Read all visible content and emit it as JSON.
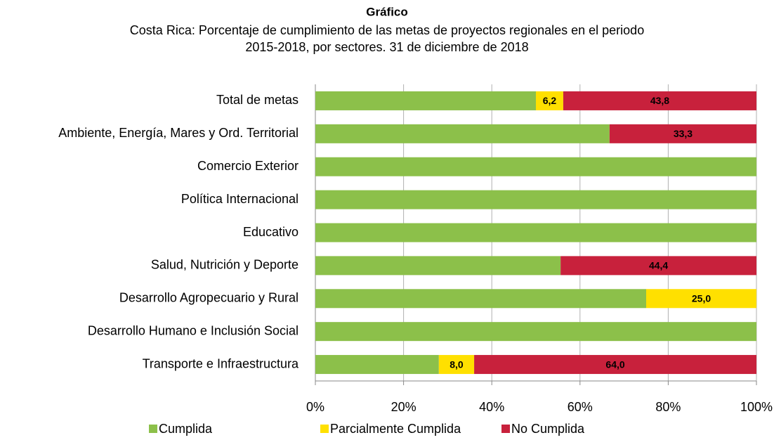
{
  "chart_data": {
    "type": "stacked-bar-horizontal",
    "title": "Gráfico",
    "subtitle": [
      "Costa Rica: Porcentaje de cumplimiento de las metas de proyectos regionales en el periodo",
      "2015-2018, por sectores. 31 de diciembre de 2018"
    ],
    "categories": [
      "Total de metas",
      "Ambiente, Energía, Mares y Ord. Territorial",
      "Comercio Exterior",
      "Política Internacional",
      "Educativo",
      "Salud, Nutrición y Deporte",
      "Desarrollo Agropecuario y Rural",
      "Desarrollo Humano e Inclusión Social",
      "Transporte e Infraestructura"
    ],
    "series": [
      {
        "name": "Cumplida",
        "color": "#8cc04a",
        "values": [
          50.0,
          66.7,
          100,
          100,
          100,
          55.6,
          75.0,
          100,
          28.0
        ]
      },
      {
        "name": "Parcialmente Cumplida",
        "color": "#ffe000",
        "values": [
          6.2,
          0,
          0,
          0,
          0,
          0,
          25.0,
          0,
          8.0
        ],
        "value_labels": [
          "6,2",
          null,
          null,
          null,
          null,
          null,
          "25,0",
          null,
          "8,0"
        ]
      },
      {
        "name": "No Cumplida",
        "color": "#c8213c",
        "values": [
          43.8,
          33.3,
          0,
          0,
          0,
          44.4,
          0,
          0,
          64.0
        ],
        "value_labels": [
          "43,8",
          "33,3",
          null,
          null,
          null,
          "44,4",
          null,
          null,
          "64,0"
        ]
      }
    ],
    "xlim": [
      0,
      100
    ],
    "xticks": [
      {
        "value": 0,
        "label": "0%"
      },
      {
        "value": 20,
        "label": "20%"
      },
      {
        "value": 40,
        "label": "40%"
      },
      {
        "value": 60,
        "label": "60%"
      },
      {
        "value": 80,
        "label": "80%"
      },
      {
        "value": 100,
        "label": "100%"
      }
    ],
    "grid": true,
    "legend": "bottom"
  }
}
